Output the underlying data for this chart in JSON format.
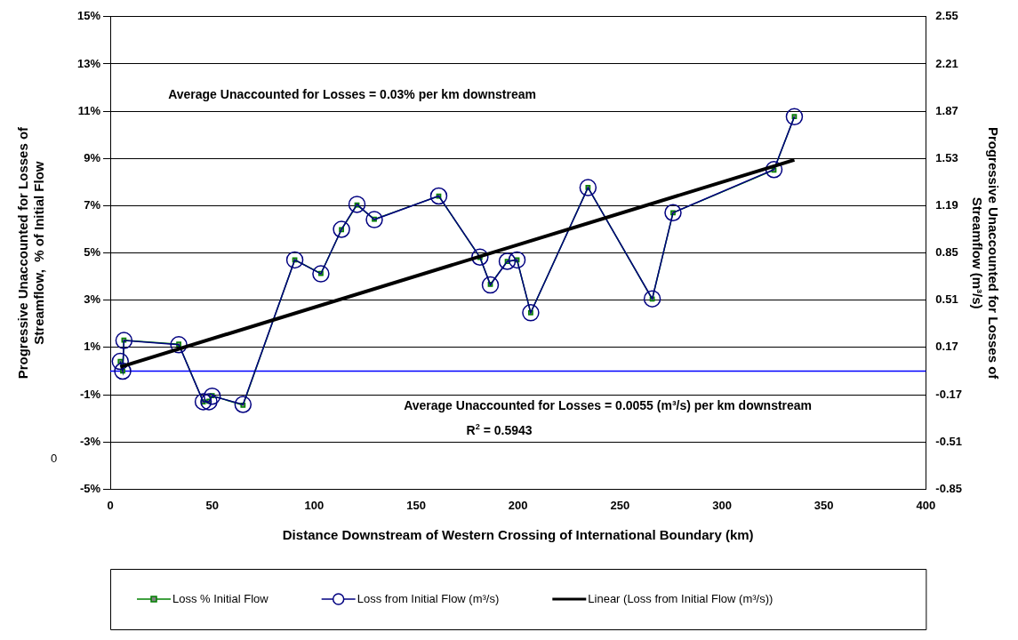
{
  "chart_data": {
    "type": "line",
    "xlabel": "Distance Downstream of Western Crossing of International Boundary (km)",
    "ylabel": "Progressive Unaccounted for Losses of Streamflow,  % of Initial Flow",
    "y2label": "Progressive Unaccounted for Losses of Streamflow (m³/s)",
    "x": [
      4.9,
      6.1,
      6.7,
      33.6,
      45.6,
      48.4,
      50,
      65.1,
      90.5,
      103.3,
      113.4,
      121,
      129.5,
      161.1,
      181.3,
      186.4,
      194.7,
      199.5,
      206.2,
      234.3,
      265.8,
      276,
      325.5,
      335.5
    ],
    "series": [
      {
        "name": "Loss % Initial Flow",
        "color": "#008000",
        "marker": "square",
        "values": [
          0.41,
          0,
          1.31,
          1.14,
          -1.3,
          -1.27,
          -1.04,
          -1.44,
          4.71,
          4.13,
          5.99,
          7.03,
          6.43,
          7.41,
          4.81,
          3.67,
          4.64,
          4.71,
          2.47,
          7.77,
          3.05,
          6.7,
          8.51,
          10.77
        ]
      },
      {
        "name": "Loss from Initial Flow (m³/s)",
        "color": "#000080",
        "marker": "circle",
        "axis": "y2",
        "values": [
          0.07,
          0,
          0.22,
          0.19,
          -0.22,
          -0.22,
          -0.18,
          -0.24,
          0.8,
          0.7,
          1.02,
          1.2,
          1.09,
          1.26,
          0.82,
          0.62,
          0.79,
          0.8,
          0.42,
          1.32,
          0.52,
          1.14,
          1.45,
          1.83
        ]
      },
      {
        "name": "Linear (Loss from Initial Flow (m³/s))",
        "color": "#000000",
        "marker": "none",
        "axis": "y2",
        "x": [
          4.9,
          335.5
        ],
        "values": [
          0.03,
          1.52
        ]
      }
    ],
    "xlim": [
      0,
      400
    ],
    "xticks": [
      0,
      50,
      100,
      150,
      200,
      250,
      300,
      350,
      400
    ],
    "ylim": [
      -5,
      15
    ],
    "yticks": [
      {
        "value": -5,
        "label": "-5%"
      },
      {
        "value": -3,
        "label": "-3%"
      },
      {
        "value": -1,
        "label": "-1%"
      },
      {
        "value": 1,
        "label": "1%"
      },
      {
        "value": 3,
        "label": "3%"
      },
      {
        "value": 5,
        "label": "5%"
      },
      {
        "value": 7,
        "label": "7%"
      },
      {
        "value": 9,
        "label": "9%"
      },
      {
        "value": 11,
        "label": "11%"
      },
      {
        "value": 13,
        "label": "13%"
      },
      {
        "value": 15,
        "label": "15%"
      }
    ],
    "y2lim": [
      -0.85,
      2.55
    ],
    "y2ticks": [
      -0.85,
      -0.51,
      -0.17,
      0.17,
      0.51,
      0.85,
      1.19,
      1.53,
      1.87,
      2.21,
      2.55
    ],
    "ref_lines": [
      {
        "axis": "y",
        "value": 0,
        "color": "#0000ff"
      }
    ],
    "grid": "y",
    "legend": "bottom",
    "annotations": [
      "Average Unaccounted for Losses = 0.03% per km downstream",
      "Average Unaccounted for Losses = 0.0055 (m³/s) per km downstream",
      "R$^{2}$ = 0.5943",
      "0"
    ]
  }
}
